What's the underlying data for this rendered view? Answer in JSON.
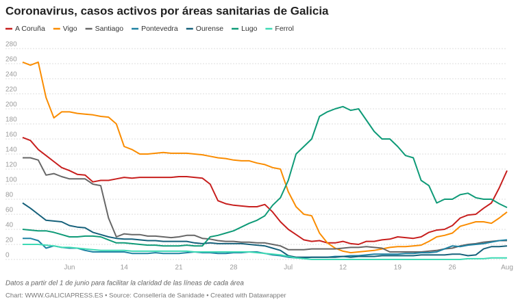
{
  "chart_data": {
    "type": "line",
    "title": "Coronavirus, casos activos por áreas sanitarias de Galicia",
    "note": "Datos a partir del 1 de junio para facilitar la claridad de las líneas de cada área",
    "source": "Chart: WWW.GALICIAPRESS.ES • Source: Consellería de Sanidade • Created with Datawrapper",
    "categories": [
      null,
      null,
      null,
      null,
      null,
      null,
      "Jun",
      null,
      null,
      null,
      null,
      null,
      null,
      "14",
      null,
      null,
      null,
      null,
      null,
      null,
      "21",
      null,
      null,
      null,
      null,
      null,
      null,
      "28",
      null,
      null,
      null,
      null,
      null,
      null,
      "Jul",
      null,
      null,
      null,
      null,
      null,
      null,
      "12",
      null,
      null,
      null,
      null,
      null,
      null,
      "19",
      null,
      null,
      null,
      null,
      null,
      null,
      "26",
      null,
      null,
      null,
      null,
      null,
      null,
      "Aug"
    ],
    "ylim": [
      0,
      280
    ],
    "yticks": [
      0,
      20,
      40,
      60,
      80,
      100,
      120,
      140,
      160,
      180,
      200,
      220,
      240,
      260,
      280
    ],
    "grid": true,
    "series": [
      {
        "name": "A Coruña",
        "color": "#c71e1d",
        "values": [
          162,
          158,
          146,
          138,
          130,
          122,
          118,
          113,
          112,
          103,
          105,
          105,
          107,
          109,
          108,
          109,
          109,
          109,
          109,
          109,
          110,
          110,
          109,
          108,
          100,
          78,
          74,
          72,
          71,
          70,
          70,
          73,
          63,
          50,
          40,
          33,
          26,
          24,
          25,
          22,
          22,
          24,
          21,
          20,
          24,
          24,
          26,
          27,
          30,
          29,
          28,
          30,
          36,
          39,
          40,
          45,
          55,
          59,
          60,
          68,
          75,
          95,
          118
        ]
      },
      {
        "name": "Vigo",
        "color": "#fa8c00",
        "values": [
          262,
          258,
          262,
          215,
          188,
          196,
          196,
          194,
          193,
          192,
          190,
          189,
          180,
          150,
          146,
          140,
          140,
          141,
          142,
          141,
          141,
          141,
          140,
          139,
          137,
          135,
          134,
          132,
          131,
          131,
          128,
          126,
          122,
          120,
          90,
          70,
          60,
          58,
          35,
          22,
          15,
          11,
          9,
          10,
          11,
          12,
          14,
          16,
          17,
          17,
          18,
          19,
          24,
          30,
          32,
          35,
          44,
          47,
          50,
          50,
          48,
          55,
          63
        ]
      },
      {
        "name": "Santiago",
        "color": "#666666",
        "values": [
          135,
          135,
          132,
          112,
          114,
          110,
          107,
          107,
          107,
          100,
          98,
          55,
          30,
          34,
          33,
          33,
          31,
          31,
          30,
          29,
          30,
          32,
          32,
          28,
          27,
          25,
          24,
          24,
          23,
          23,
          22,
          22,
          20,
          18,
          13,
          13,
          13,
          14,
          14,
          14,
          14,
          15,
          16,
          16,
          17,
          16,
          15,
          10,
          10,
          10,
          10,
          10,
          11,
          12,
          14,
          15,
          18,
          20,
          21,
          23,
          24,
          25,
          25
        ]
      },
      {
        "name": "Pontevedra",
        "color": "#1d81a2",
        "values": [
          28,
          28,
          25,
          15,
          18,
          16,
          15,
          15,
          12,
          10,
          10,
          10,
          10,
          10,
          8,
          8,
          8,
          9,
          8,
          8,
          8,
          9,
          10,
          9,
          9,
          8,
          8,
          9,
          9,
          10,
          10,
          8,
          6,
          5,
          3,
          2,
          2,
          3,
          3,
          3,
          4,
          4,
          5,
          5,
          6,
          7,
          7,
          7,
          7,
          8,
          8,
          9,
          9,
          10,
          14,
          18,
          17,
          19,
          20,
          21,
          23,
          25,
          26
        ]
      },
      {
        "name": "Ourense",
        "color": "#15607a",
        "values": [
          75,
          68,
          60,
          52,
          51,
          50,
          45,
          43,
          42,
          36,
          33,
          30,
          28,
          27,
          27,
          26,
          25,
          25,
          24,
          24,
          24,
          24,
          22,
          21,
          22,
          21,
          21,
          21,
          21,
          20,
          19,
          18,
          15,
          12,
          5,
          3,
          3,
          3,
          3,
          3,
          3,
          4,
          3,
          4,
          4,
          4,
          5,
          5,
          5,
          5,
          5,
          6,
          6,
          6,
          6,
          7,
          7,
          5,
          6,
          14,
          17,
          17,
          18
        ]
      },
      {
        "name": "Lugo",
        "color": "#0e9a77",
        "values": [
          40,
          39,
          38,
          38,
          36,
          33,
          30,
          30,
          31,
          31,
          30,
          26,
          22,
          22,
          21,
          20,
          19,
          19,
          18,
          18,
          18,
          19,
          18,
          18,
          30,
          32,
          35,
          38,
          43,
          48,
          52,
          58,
          72,
          82,
          105,
          140,
          150,
          160,
          190,
          196,
          200,
          203,
          198,
          200,
          185,
          170,
          160,
          160,
          150,
          138,
          135,
          105,
          98,
          75,
          80,
          80,
          86,
          88,
          82,
          80,
          80,
          74,
          69
        ]
      },
      {
        "name": "Ferrol",
        "color": "#3dd9b4",
        "values": [
          20,
          20,
          20,
          19,
          18,
          16,
          16,
          15,
          14,
          13,
          12,
          12,
          12,
          12,
          11,
          11,
          11,
          11,
          11,
          11,
          11,
          11,
          10,
          10,
          10,
          10,
          10,
          10,
          10,
          10,
          9,
          8,
          7,
          6,
          4,
          2,
          1,
          0,
          0,
          0,
          0,
          0,
          0,
          0,
          0,
          0,
          0,
          0,
          0,
          0,
          0,
          0,
          0,
          0,
          0,
          0,
          0,
          1,
          1,
          1,
          2,
          2,
          2
        ]
      }
    ]
  }
}
